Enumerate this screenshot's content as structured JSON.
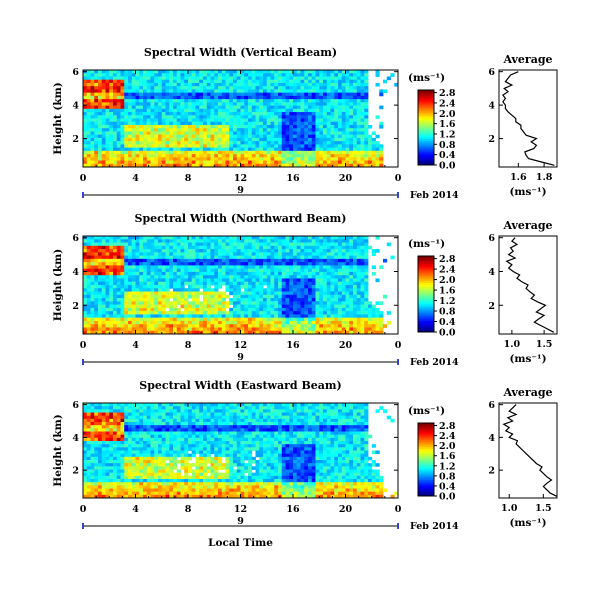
{
  "chart_data": [
    {
      "type": "heatmap",
      "title": "Spectral Width (Vertical Beam)",
      "ylabel": "Height (km)",
      "xlabel": "",
      "date_label": "Feb 2014",
      "day_label": "9",
      "xticks": [
        "0",
        "4",
        "8",
        "12",
        "16",
        "20",
        "0"
      ],
      "yticks": [
        "2",
        "4",
        "6"
      ],
      "colorbar": {
        "unit": "(ms⁻¹)",
        "ticks": [
          "0.0",
          "0.4",
          "0.8",
          "1.2",
          "1.6",
          "2.0",
          "2.4",
          "2.8"
        ],
        "range": [
          0,
          2.9
        ]
      },
      "average": {
        "title": "Average",
        "xlabel": "(ms⁻¹)",
        "xticks": [
          "1.6",
          "1.8"
        ],
        "xlim": [
          1.45,
          1.9
        ],
        "yticks": [
          "2",
          "4",
          "6"
        ],
        "ylim": [
          0.3,
          6.1
        ],
        "heights": [
          0.4,
          0.6,
          0.8,
          1.0,
          1.2,
          1.4,
          1.6,
          1.8,
          2.0,
          2.2,
          2.4,
          2.6,
          2.8,
          3.0,
          3.2,
          3.4,
          3.6,
          3.8,
          4.0,
          4.2,
          4.4,
          4.6,
          4.8,
          5.0,
          5.2,
          5.4,
          5.6,
          5.8,
          6.0
        ],
        "values": [
          1.88,
          1.78,
          1.68,
          1.66,
          1.65,
          1.72,
          1.74,
          1.7,
          1.74,
          1.66,
          1.64,
          1.62,
          1.62,
          1.58,
          1.58,
          1.55,
          1.52,
          1.5,
          1.5,
          1.48,
          1.5,
          1.48,
          1.52,
          1.49,
          1.55,
          1.5,
          1.52,
          1.54,
          1.6
        ]
      }
    },
    {
      "type": "heatmap",
      "title": "Spectral Width (Northward Beam)",
      "ylabel": "Height (km)",
      "xlabel": "",
      "date_label": "Feb 2014",
      "day_label": "9",
      "xticks": [
        "0",
        "4",
        "8",
        "12",
        "16",
        "20",
        "0"
      ],
      "yticks": [
        "2",
        "4",
        "6"
      ],
      "colorbar": {
        "unit": "(ms⁻¹)",
        "ticks": [
          "0.0",
          "0.4",
          "0.8",
          "1.2",
          "1.6",
          "2.0",
          "2.4",
          "2.8"
        ],
        "range": [
          0,
          2.9
        ]
      },
      "average": {
        "title": "Average",
        "xlabel": "(ms⁻¹)",
        "xticks": [
          "1.0",
          "1.5"
        ],
        "xlim": [
          0.8,
          1.7
        ],
        "yticks": [
          "2",
          "4",
          "6"
        ],
        "ylim": [
          0.3,
          6.1
        ],
        "heights": [
          0.4,
          0.6,
          0.8,
          1.0,
          1.2,
          1.4,
          1.6,
          1.8,
          2.0,
          2.2,
          2.4,
          2.6,
          2.8,
          3.0,
          3.2,
          3.4,
          3.6,
          3.8,
          4.0,
          4.2,
          4.4,
          4.6,
          4.8,
          5.0,
          5.2,
          5.4,
          5.6,
          5.8,
          6.0
        ],
        "values": [
          1.65,
          1.55,
          1.45,
          1.35,
          1.42,
          1.5,
          1.38,
          1.45,
          1.52,
          1.4,
          1.3,
          1.35,
          1.28,
          1.22,
          1.25,
          1.15,
          1.08,
          1.12,
          1.02,
          0.95,
          1.0,
          0.92,
          1.05,
          0.95,
          1.02,
          0.98,
          1.08,
          1.0,
          1.05
        ]
      }
    },
    {
      "type": "heatmap",
      "title": "Spectral Width (Eastward Beam)",
      "ylabel": "Height (km)",
      "xlabel": "Local Time",
      "date_label": "Feb 2014",
      "day_label": "9",
      "xticks": [
        "0",
        "4",
        "8",
        "12",
        "16",
        "20",
        "0"
      ],
      "yticks": [
        "2",
        "4",
        "6"
      ],
      "colorbar": {
        "unit": "(ms⁻¹)",
        "ticks": [
          "0.0",
          "0.4",
          "0.8",
          "1.2",
          "1.6",
          "2.0",
          "2.4",
          "2.8"
        ],
        "range": [
          0,
          2.9
        ]
      },
      "average": {
        "title": "Average",
        "xlabel": "(ms⁻¹)",
        "xticks": [
          "1.0",
          "1.5"
        ],
        "xlim": [
          0.85,
          1.7
        ],
        "yticks": [
          "2",
          "4",
          "6"
        ],
        "ylim": [
          0.3,
          6.1
        ],
        "heights": [
          0.4,
          0.6,
          0.8,
          1.0,
          1.2,
          1.4,
          1.6,
          1.8,
          2.0,
          2.2,
          2.4,
          2.6,
          2.8,
          3.0,
          3.2,
          3.4,
          3.6,
          3.8,
          4.0,
          4.2,
          4.4,
          4.6,
          4.8,
          5.0,
          5.2,
          5.4,
          5.6,
          5.8,
          6.0
        ],
        "values": [
          1.7,
          1.6,
          1.55,
          1.5,
          1.55,
          1.62,
          1.55,
          1.5,
          1.45,
          1.48,
          1.4,
          1.35,
          1.3,
          1.25,
          1.2,
          1.15,
          1.1,
          1.12,
          1.0,
          1.05,
          0.95,
          1.0,
          0.92,
          1.05,
          0.98,
          1.1,
          1.0,
          1.05,
          1.1
        ]
      }
    }
  ]
}
